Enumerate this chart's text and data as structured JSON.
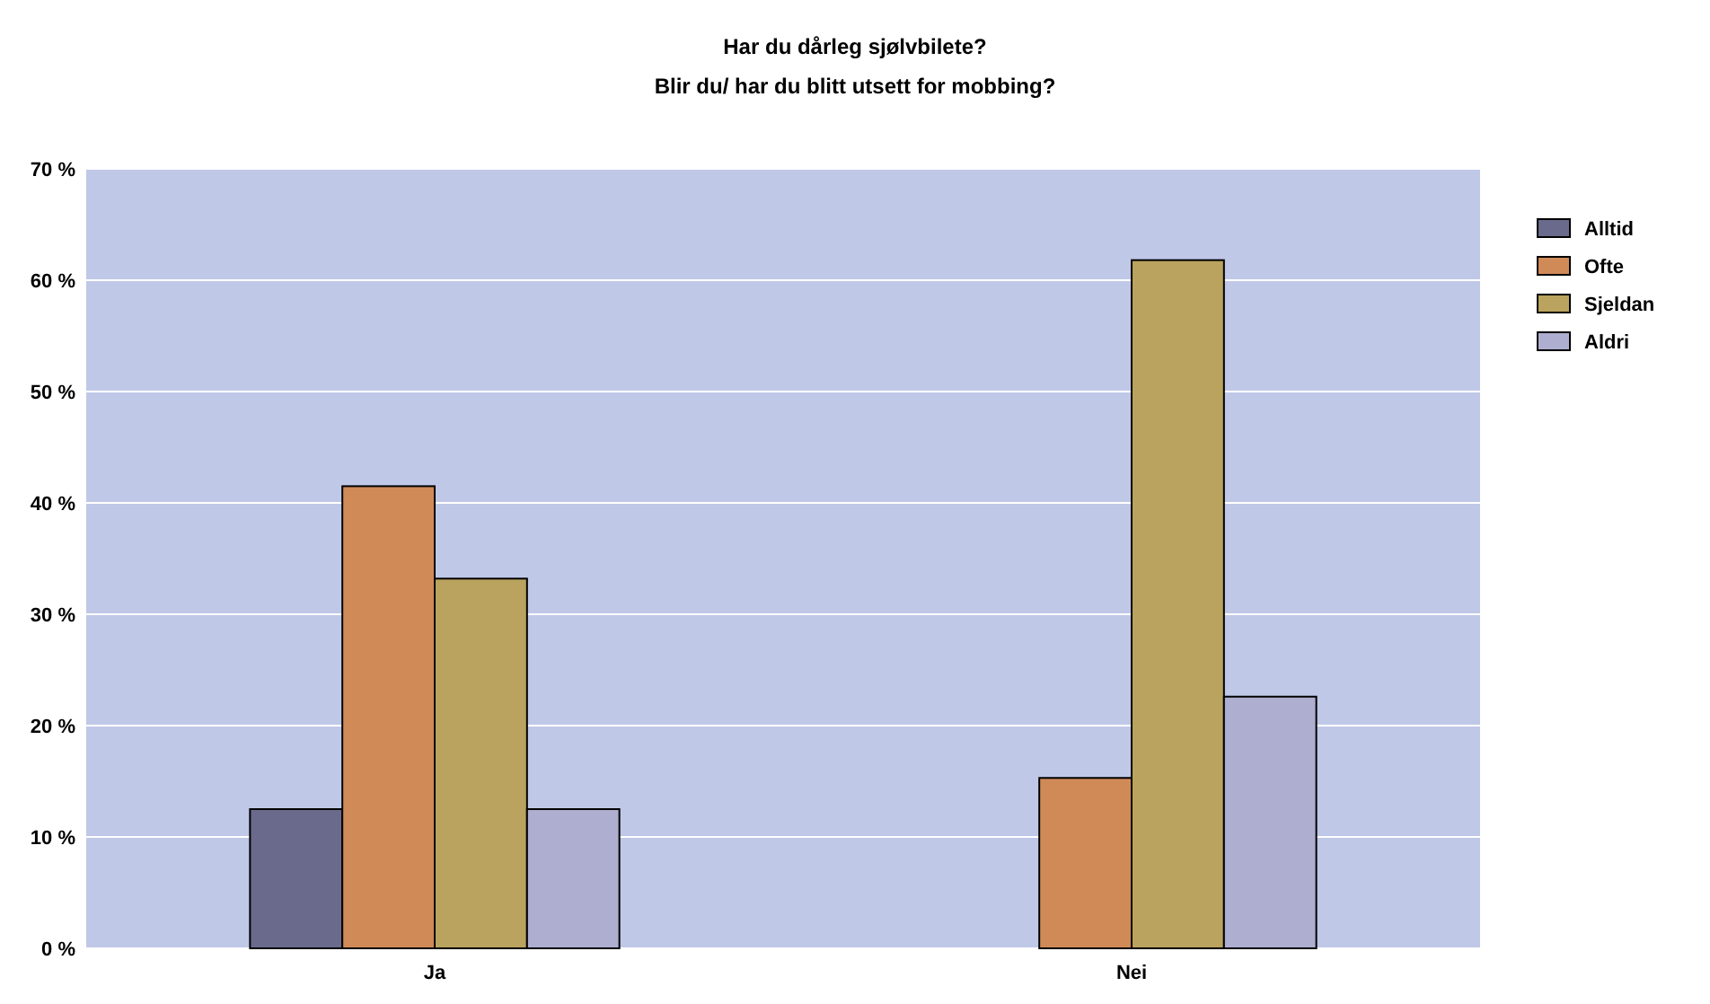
{
  "chart_data": {
    "type": "bar",
    "title": "Har du dårleg sjølvbilete?",
    "subtitle": "Blir du/ har du blitt utsett for mobbing?",
    "categories": [
      "Ja",
      "Nei"
    ],
    "series": [
      {
        "name": "Alltid",
        "color": "#6a6a8c",
        "values": [
          12.5,
          0
        ]
      },
      {
        "name": "Ofte",
        "color": "#d08a58",
        "values": [
          41.5,
          15.3
        ]
      },
      {
        "name": "Sjeldan",
        "color": "#baa35e",
        "values": [
          33.2,
          61.8
        ]
      },
      {
        "name": "Aldri",
        "color": "#aeaed0",
        "values": [
          12.5,
          22.6
        ]
      }
    ],
    "ylim": [
      0,
      70
    ],
    "yticks": [
      {
        "value": 0,
        "label": "0 %"
      },
      {
        "value": 10,
        "label": "10 %"
      },
      {
        "value": 20,
        "label": "20 %"
      },
      {
        "value": 30,
        "label": "30 %"
      },
      {
        "value": 40,
        "label": "40 %"
      },
      {
        "value": 50,
        "label": "50 %"
      },
      {
        "value": 60,
        "label": "60 %"
      },
      {
        "value": 70,
        "label": "70 %"
      }
    ],
    "grid": "y",
    "legend": "right"
  }
}
